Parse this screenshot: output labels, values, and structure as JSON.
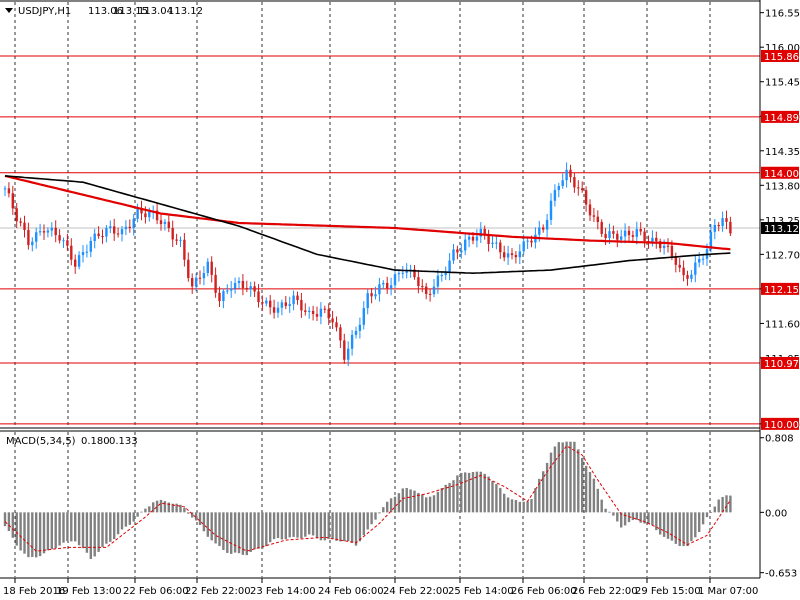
{
  "header": {
    "symbol": "USDJPY,H1",
    "open": "113.06",
    "high": "113.15",
    "low": "113.04",
    "close": "113.12"
  },
  "macd_header": {
    "label": "MACD(5,34,5)",
    "main": "0.180",
    "signal": "0.133"
  },
  "colors": {
    "background": "#ffffff",
    "bull": "#1e90ff",
    "bear": "#d02020",
    "level": "#e00000",
    "ma_fast": "#e00000",
    "ma_slow": "#000000",
    "histogram": "#808080",
    "signal": "#e00000",
    "price_tag": "#e00000",
    "current_tag": "#000000"
  },
  "chart_data": [
    {
      "type": "candlestick",
      "title": "",
      "x_ticks": [
        "18 Feb 2016",
        "19 Feb 13:00",
        "22 Feb 06:00",
        "22 Feb 22:00",
        "23 Feb 14:00",
        "24 Feb 06:00",
        "24 Feb 22:00",
        "25 Feb 14:00",
        "26 Feb 06:00",
        "26 Feb 22:00",
        "29 Feb 15:00",
        "1 Mar 07:00"
      ],
      "y_ticks": [
        "116.55",
        "116.00",
        "115.45",
        "114.90",
        "114.35",
        "113.80",
        "113.25",
        "112.70",
        "112.15",
        "111.60",
        "111.05",
        "110.00"
      ],
      "ylim": [
        109.95,
        116.72
      ],
      "current_price": "113.12",
      "horizontal_levels": [
        {
          "label": "115.86",
          "value": 115.86
        },
        {
          "label": "114.89",
          "value": 114.89
        },
        {
          "label": "114.00",
          "value": 114.0
        },
        {
          "label": "112.15",
          "value": 112.15
        },
        {
          "label": "110.97",
          "value": 110.97
        },
        {
          "label": "110.00",
          "value": 110.0
        }
      ],
      "anchors": [
        [
          0,
          113.75
        ],
        [
          3,
          113.25
        ],
        [
          6,
          112.9
        ],
        [
          10,
          113.15
        ],
        [
          14,
          112.95
        ],
        [
          18,
          112.55
        ],
        [
          22,
          112.95
        ],
        [
          26,
          113.05
        ],
        [
          30,
          113.05
        ],
        [
          34,
          113.4
        ],
        [
          38,
          113.3
        ],
        [
          42,
          113.1
        ],
        [
          45,
          112.9
        ],
        [
          48,
          112.15
        ],
        [
          52,
          112.5
        ],
        [
          55,
          112.0
        ],
        [
          58,
          112.25
        ],
        [
          62,
          112.15
        ],
        [
          66,
          111.95
        ],
        [
          70,
          111.85
        ],
        [
          74,
          111.95
        ],
        [
          78,
          111.75
        ],
        [
          81,
          111.85
        ],
        [
          84,
          111.65
        ],
        [
          87,
          111.05
        ],
        [
          90,
          111.5
        ],
        [
          93,
          112.05
        ],
        [
          96,
          112.15
        ],
        [
          99,
          112.2
        ],
        [
          102,
          112.5
        ],
        [
          105,
          112.4
        ],
        [
          108,
          112.0
        ],
        [
          112,
          112.35
        ],
        [
          115,
          112.75
        ],
        [
          118,
          112.9
        ],
        [
          122,
          113.0
        ],
        [
          126,
          112.85
        ],
        [
          130,
          112.65
        ],
        [
          133,
          112.8
        ],
        [
          136,
          113.0
        ],
        [
          138,
          113.15
        ],
        [
          140,
          113.55
        ],
        [
          142,
          113.85
        ],
        [
          144,
          113.95
        ],
        [
          146,
          113.8
        ],
        [
          148,
          113.65
        ],
        [
          151,
          113.3
        ],
        [
          154,
          113.0
        ],
        [
          158,
          112.95
        ],
        [
          162,
          113.1
        ],
        [
          166,
          112.9
        ],
        [
          169,
          112.8
        ],
        [
          172,
          112.6
        ],
        [
          174,
          112.35
        ],
        [
          176,
          112.45
        ],
        [
          178,
          112.6
        ],
        [
          180,
          112.75
        ],
        [
          182,
          113.15
        ],
        [
          184,
          113.25
        ],
        [
          186,
          113.12
        ]
      ],
      "series": [
        {
          "name": "",
          "kind": "ma",
          "values": [
            [
              0,
              113.95
            ],
            [
              40,
              113.35
            ],
            [
              60,
              113.2
            ],
            [
              100,
              113.12
            ],
            [
              130,
              112.98
            ],
            [
              150,
              112.92
            ],
            [
              170,
              112.88
            ],
            [
              186,
              112.78
            ]
          ]
        },
        {
          "name": "",
          "kind": "ma",
          "values": [
            [
              0,
              113.95
            ],
            [
              20,
              113.85
            ],
            [
              40,
              113.5
            ],
            [
              60,
              113.15
            ],
            [
              80,
              112.7
            ],
            [
              100,
              112.45
            ],
            [
              120,
              112.4
            ],
            [
              140,
              112.45
            ],
            [
              160,
              112.6
            ],
            [
              180,
              112.7
            ],
            [
              186,
              112.72
            ]
          ]
        }
      ]
    },
    {
      "type": "bar",
      "title": "MACD(5,34,5)",
      "y_ticks": [
        "0.808",
        "0.00",
        "-0.653"
      ],
      "ylim": [
        -0.7,
        0.87
      ],
      "anchors": [
        [
          0,
          -0.15
        ],
        [
          3,
          -0.35
        ],
        [
          6,
          -0.5
        ],
        [
          10,
          -0.45
        ],
        [
          14,
          -0.35
        ],
        [
          18,
          -0.3
        ],
        [
          22,
          -0.5
        ],
        [
          26,
          -0.35
        ],
        [
          30,
          -0.2
        ],
        [
          34,
          -0.05
        ],
        [
          38,
          0.12
        ],
        [
          42,
          0.12
        ],
        [
          46,
          0.05
        ],
        [
          50,
          -0.15
        ],
        [
          54,
          -0.35
        ],
        [
          58,
          -0.45
        ],
        [
          62,
          -0.45
        ],
        [
          66,
          -0.38
        ],
        [
          70,
          -0.28
        ],
        [
          74,
          -0.28
        ],
        [
          78,
          -0.25
        ],
        [
          82,
          -0.3
        ],
        [
          86,
          -0.3
        ],
        [
          90,
          -0.35
        ],
        [
          93,
          -0.2
        ],
        [
          96,
          0.0
        ],
        [
          99,
          0.15
        ],
        [
          102,
          0.25
        ],
        [
          105,
          0.25
        ],
        [
          108,
          0.15
        ],
        [
          112,
          0.25
        ],
        [
          116,
          0.4
        ],
        [
          120,
          0.45
        ],
        [
          124,
          0.4
        ],
        [
          128,
          0.2
        ],
        [
          132,
          0.1
        ],
        [
          135,
          0.15
        ],
        [
          138,
          0.45
        ],
        [
          140,
          0.65
        ],
        [
          142,
          0.75
        ],
        [
          144,
          0.78
        ],
        [
          146,
          0.75
        ],
        [
          148,
          0.6
        ],
        [
          151,
          0.35
        ],
        [
          154,
          0.05
        ],
        [
          158,
          -0.15
        ],
        [
          162,
          -0.08
        ],
        [
          166,
          -0.15
        ],
        [
          170,
          -0.3
        ],
        [
          173,
          -0.35
        ],
        [
          175,
          -0.38
        ],
        [
          178,
          -0.2
        ],
        [
          181,
          0.0
        ],
        [
          183,
          0.15
        ],
        [
          186,
          0.18
        ]
      ],
      "signal_anchors": [
        [
          0,
          -0.1
        ],
        [
          8,
          -0.42
        ],
        [
          16,
          -0.38
        ],
        [
          26,
          -0.38
        ],
        [
          36,
          -0.05
        ],
        [
          40,
          0.1
        ],
        [
          46,
          0.06
        ],
        [
          54,
          -0.25
        ],
        [
          62,
          -0.42
        ],
        [
          72,
          -0.3
        ],
        [
          82,
          -0.27
        ],
        [
          90,
          -0.33
        ],
        [
          96,
          -0.12
        ],
        [
          102,
          0.15
        ],
        [
          108,
          0.2
        ],
        [
          116,
          0.3
        ],
        [
          122,
          0.4
        ],
        [
          128,
          0.28
        ],
        [
          134,
          0.12
        ],
        [
          140,
          0.5
        ],
        [
          144,
          0.72
        ],
        [
          148,
          0.62
        ],
        [
          152,
          0.35
        ],
        [
          158,
          -0.02
        ],
        [
          164,
          -0.1
        ],
        [
          170,
          -0.22
        ],
        [
          175,
          -0.35
        ],
        [
          180,
          -0.25
        ],
        [
          186,
          0.133
        ]
      ],
      "series": [
        {
          "name": "",
          "kind": "histogram"
        },
        {
          "name": "",
          "kind": "signal"
        }
      ]
    }
  ]
}
